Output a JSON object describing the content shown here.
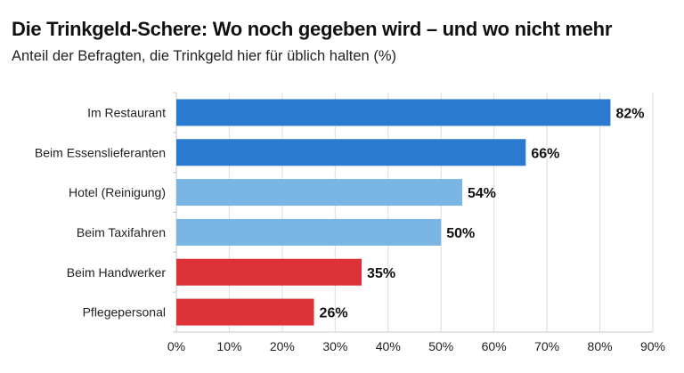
{
  "chart_data": {
    "type": "bar",
    "orientation": "horizontal",
    "title": "Die Trinkgeld-Schere: Wo noch gegeben wird – und wo nicht mehr",
    "subtitle": "Anteil der Befragten, die Trinkgeld hier für üblich halten (%)",
    "categories": [
      "Im Restaurant",
      "Beim Essenslieferanten",
      "Hotel (Reinigung)",
      "Beim Taxifahren",
      "Beim Handwerker",
      "Pflegepersonal"
    ],
    "values": [
      82,
      66,
      54,
      50,
      35,
      26
    ],
    "data_labels": [
      "82%",
      "66%",
      "54%",
      "50%",
      "35%",
      "26%"
    ],
    "bar_colors": [
      "#2a7bd0",
      "#2a7bd0",
      "#7ab6e4",
      "#7ab6e4",
      "#dc3238",
      "#dc3238"
    ],
    "xlim": [
      0,
      90
    ],
    "xticks": [
      0,
      10,
      20,
      30,
      40,
      50,
      60,
      70,
      80,
      90
    ],
    "xtick_labels": [
      "0%",
      "10%",
      "20%",
      "30%",
      "40%",
      "50%",
      "60%",
      "70%",
      "80%",
      "90%"
    ],
    "grid": true,
    "legend": "none"
  }
}
